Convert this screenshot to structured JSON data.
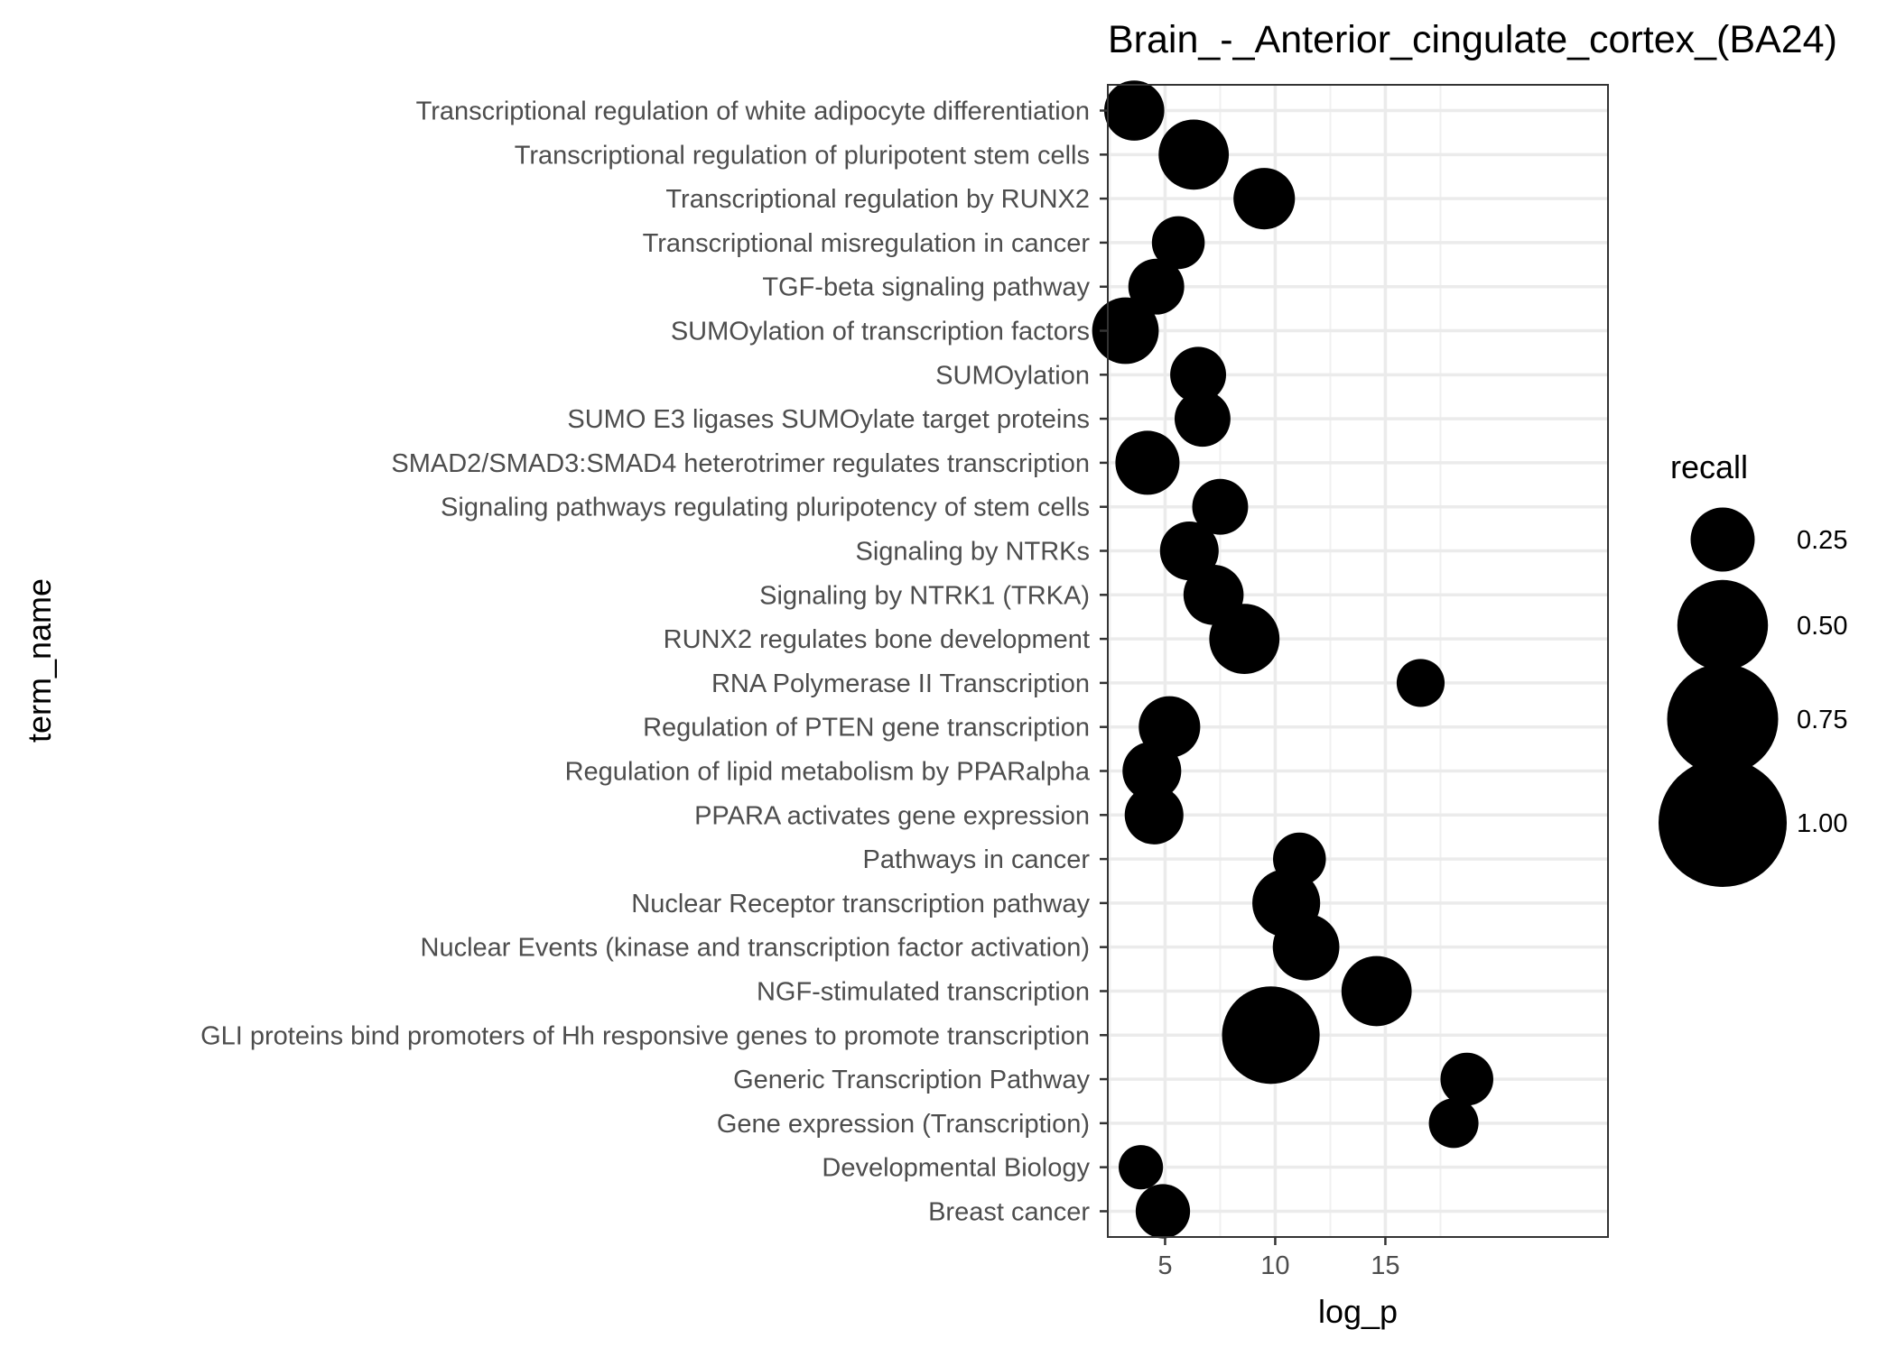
{
  "chart_data": {
    "type": "scatter",
    "title": "Brain_-_Anterior_cingulate_cortex_(BA24)",
    "xlabel": "log_p",
    "ylabel": "term_name",
    "xlim": [
      2.4,
      19.5
    ],
    "x_ticks": [
      "5",
      "10",
      "15"
    ],
    "grid": true,
    "legend": {
      "title": "recall",
      "position": "right",
      "entries": [
        {
          "label": "0.25",
          "value": 0.25
        },
        {
          "label": "0.50",
          "value": 0.5
        },
        {
          "label": "0.75",
          "value": 0.75
        },
        {
          "label": "1.00",
          "value": 1.0
        }
      ]
    },
    "points": [
      {
        "term": "Transcriptional regulation of white adipocyte differentiation",
        "log_p": 3.6,
        "recall": 0.22
      },
      {
        "term": "Transcriptional regulation of pluripotent stem cells",
        "log_p": 6.3,
        "recall": 0.3
      },
      {
        "term": "Transcriptional regulation by RUNX2",
        "log_p": 9.5,
        "recall": 0.23
      },
      {
        "term": "Transcriptional misregulation in cancer",
        "log_p": 5.6,
        "recall": 0.17
      },
      {
        "term": "TGF-beta signaling pathway",
        "log_p": 4.6,
        "recall": 0.19
      },
      {
        "term": "SUMOylation of transcription factors",
        "log_p": 3.2,
        "recall": 0.27
      },
      {
        "term": "SUMOylation",
        "log_p": 6.5,
        "recall": 0.19
      },
      {
        "term": "SUMO E3 ligases SUMOylate target proteins",
        "log_p": 6.7,
        "recall": 0.19
      },
      {
        "term": "SMAD2/SMAD3:SMAD4 heterotrimer regulates transcription",
        "log_p": 4.2,
        "recall": 0.25
      },
      {
        "term": "Signaling pathways regulating pluripotency of stem cells",
        "log_p": 7.5,
        "recall": 0.19
      },
      {
        "term": "Signaling by NTRKs",
        "log_p": 6.1,
        "recall": 0.21
      },
      {
        "term": "Signaling by NTRK1 (TRKA)",
        "log_p": 7.2,
        "recall": 0.22
      },
      {
        "term": "RUNX2 regulates bone development",
        "log_p": 8.6,
        "recall": 0.3
      },
      {
        "term": "RNA Polymerase II Transcription",
        "log_p": 16.6,
        "recall": 0.14
      },
      {
        "term": "Regulation of PTEN gene transcription",
        "log_p": 5.2,
        "recall": 0.23
      },
      {
        "term": "Regulation of lipid metabolism by PPARalpha",
        "log_p": 4.4,
        "recall": 0.21
      },
      {
        "term": "PPARA activates gene expression",
        "log_p": 4.5,
        "recall": 0.21
      },
      {
        "term": "Pathways in cancer",
        "log_p": 11.1,
        "recall": 0.17
      },
      {
        "term": "Nuclear Receptor transcription pathway",
        "log_p": 10.5,
        "recall": 0.28
      },
      {
        "term": "Nuclear Events (kinase and transcription factor activation)",
        "log_p": 11.4,
        "recall": 0.27
      },
      {
        "term": "NGF-stimulated transcription",
        "log_p": 14.6,
        "recall": 0.3
      },
      {
        "term": "GLI proteins bind promoters of Hh responsive genes to promote transcription",
        "log_p": 9.8,
        "recall": 0.58
      },
      {
        "term": "Generic Transcription Pathway",
        "log_p": 18.7,
        "recall": 0.17
      },
      {
        "term": "Gene expression (Transcription)",
        "log_p": 18.1,
        "recall": 0.15
      },
      {
        "term": "Developmental Biology",
        "log_p": 3.9,
        "recall": 0.12
      },
      {
        "term": "Breast cancer",
        "log_p": 4.9,
        "recall": 0.18
      }
    ]
  }
}
